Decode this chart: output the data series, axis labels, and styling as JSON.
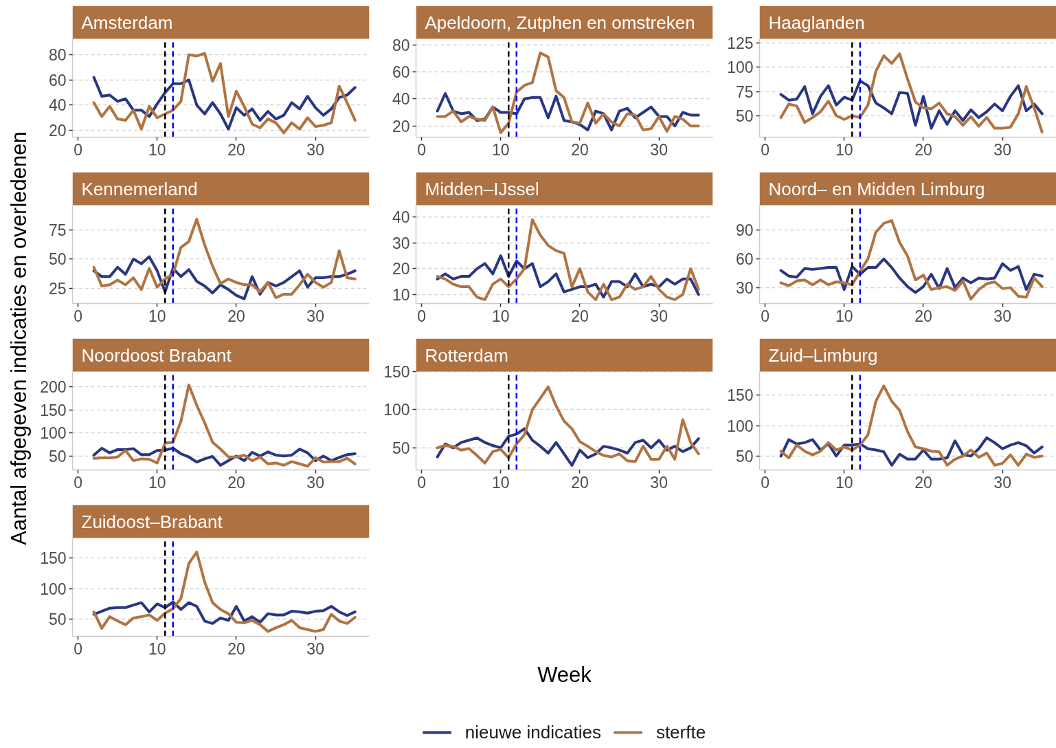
{
  "chart_data": [
    {
      "type": "line",
      "title": "Amsterdam",
      "ylabel": "Aantal afgegeven indicaties en overledenen",
      "legend": "bottom",
      "x": [
        2,
        3,
        4,
        5,
        6,
        7,
        8,
        9,
        10,
        11,
        12,
        13,
        14,
        15,
        16,
        17,
        18,
        19,
        20,
        21,
        22,
        23,
        24,
        25,
        26,
        27,
        28,
        29,
        30,
        31,
        32,
        33,
        34,
        35
      ],
      "series": [
        {
          "name": "nieuwe indicaties",
          "color": "#2a3780",
          "values": [
            62,
            47,
            48,
            43,
            45,
            36,
            36,
            31,
            41,
            50,
            57,
            57,
            60,
            40,
            33,
            42,
            33,
            21,
            38,
            32,
            37,
            28,
            35,
            29,
            32,
            42,
            37,
            47,
            38,
            32,
            37,
            46,
            48,
            54
          ]
        },
        {
          "name": "sterfte",
          "color": "#b07443",
          "values": [
            42,
            31,
            39,
            29,
            28,
            36,
            21,
            39,
            30,
            33,
            36,
            43,
            80,
            79,
            81,
            59,
            73,
            31,
            51,
            39,
            25,
            22,
            29,
            26,
            18,
            26,
            21,
            30,
            23,
            24,
            26,
            55,
            42,
            28
          ]
        }
      ],
      "xlim": [
        -0.7,
        36.8
      ],
      "xticks": [
        0,
        10,
        20,
        30
      ],
      "ylim": [
        14.6,
        92.6
      ],
      "yticks": [
        20,
        40,
        60,
        80
      ],
      "grid": "y",
      "ref_lines": [
        {
          "axis": "x",
          "value": 11,
          "color": "#000000",
          "line_style": "dashed"
        },
        {
          "axis": "x",
          "value": 12,
          "color": "#0000ff",
          "line_style": "dashed"
        }
      ]
    },
    {
      "type": "line",
      "title": "Apeldoorn, Zutphen en omstreken",
      "x": [
        2,
        3,
        4,
        5,
        6,
        7,
        8,
        9,
        10,
        11,
        12,
        13,
        14,
        15,
        16,
        17,
        18,
        19,
        20,
        21,
        22,
        23,
        24,
        25,
        26,
        27,
        28,
        29,
        30,
        31,
        32,
        33,
        34,
        35
      ],
      "series": [
        {
          "color": "#2a3780",
          "values": [
            31,
            44,
            31,
            29,
            30,
            24,
            25,
            34,
            30,
            30,
            29,
            40,
            41,
            41,
            26,
            42,
            24,
            23,
            21,
            17,
            31,
            29,
            17,
            31,
            33,
            26,
            30,
            34,
            27,
            27,
            20,
            30,
            28,
            28
          ]
        },
        {
          "color": "#b07443",
          "values": [
            27,
            27,
            31,
            23,
            27,
            25,
            24,
            34,
            15,
            22,
            45,
            50,
            52,
            74,
            71,
            46,
            41,
            23,
            22,
            37,
            22,
            29,
            23,
            20,
            29,
            28,
            17,
            18,
            27,
            16,
            27,
            25,
            20,
            20
          ]
        }
      ],
      "xlim": [
        -0.7,
        36.8
      ],
      "xticks": [
        0,
        10,
        20,
        30
      ],
      "ylim": [
        11.7,
        84.4
      ],
      "yticks": [
        20,
        40,
        60,
        80
      ],
      "grid": "y",
      "ref_lines": [
        {
          "axis": "x",
          "value": 11,
          "color": "#000000",
          "line_style": "dashed"
        },
        {
          "axis": "x",
          "value": 12,
          "color": "#0000ff",
          "line_style": "dashed"
        }
      ]
    },
    {
      "type": "line",
      "title": "Haaglanden",
      "x": [
        2,
        3,
        4,
        5,
        6,
        7,
        8,
        9,
        10,
        11,
        12,
        13,
        14,
        15,
        16,
        17,
        18,
        19,
        20,
        21,
        22,
        23,
        24,
        25,
        26,
        27,
        28,
        29,
        30,
        31,
        32,
        33,
        34,
        35
      ],
      "series": [
        {
          "color": "#2a3780",
          "values": [
            72,
            66,
            67,
            80,
            52,
            70,
            81,
            61,
            69,
            66,
            86,
            81,
            63,
            58,
            52,
            74,
            73,
            40,
            70,
            37,
            55,
            41,
            55,
            45,
            56,
            48,
            54,
            62,
            55,
            70,
            81,
            55,
            62,
            52
          ]
        },
        {
          "color": "#b07443",
          "values": [
            48,
            62,
            60,
            43,
            48,
            54,
            65,
            50,
            46,
            50,
            48,
            61,
            96,
            112,
            104,
            114,
            88,
            64,
            58,
            57,
            63,
            52,
            49,
            40,
            49,
            39,
            48,
            37,
            37,
            38,
            52,
            80,
            58,
            33
          ]
        }
      ],
      "xlim": [
        -0.7,
        36.8
      ],
      "xticks": [
        0,
        10,
        20,
        30
      ],
      "ylim": [
        27.7,
        129.5
      ],
      "yticks": [
        50,
        75,
        100,
        125
      ],
      "grid": "y",
      "ref_lines": [
        {
          "axis": "x",
          "value": 11,
          "color": "#000000",
          "line_style": "dashed"
        },
        {
          "axis": "x",
          "value": 12,
          "color": "#0000ff",
          "line_style": "dashed"
        }
      ]
    },
    {
      "type": "line",
      "title": "Kennemerland",
      "x": [
        2,
        3,
        4,
        5,
        6,
        7,
        8,
        9,
        10,
        11,
        12,
        13,
        14,
        15,
        16,
        17,
        18,
        19,
        20,
        21,
        22,
        23,
        24,
        25,
        26,
        27,
        28,
        29,
        30,
        31,
        32,
        33,
        34,
        35
      ],
      "series": [
        {
          "color": "#2a3780",
          "values": [
            40,
            35,
            35,
            43,
            37,
            50,
            46,
            52,
            40,
            22,
            42,
            35,
            41,
            31,
            27,
            21,
            28,
            24,
            19,
            16,
            35,
            20,
            30,
            27,
            30,
            35,
            40,
            26,
            34,
            34,
            35,
            35,
            37,
            40
          ]
        },
        {
          "color": "#b07443",
          "values": [
            43,
            27,
            28,
            32,
            28,
            34,
            24,
            42,
            26,
            33,
            37,
            60,
            65,
            84,
            62,
            44,
            29,
            33,
            30,
            28,
            28,
            22,
            30,
            17,
            20,
            20,
            28,
            37,
            30,
            26,
            30,
            57,
            34,
            33
          ]
        }
      ],
      "xlim": [
        -0.7,
        36.8
      ],
      "xticks": [
        0,
        10,
        20,
        30
      ],
      "ylim": [
        12,
        96
      ],
      "yticks": [
        25,
        50,
        75
      ],
      "grid": "y",
      "ref_lines": [
        {
          "axis": "x",
          "value": 11,
          "color": "#000000",
          "line_style": "dashed"
        },
        {
          "axis": "x",
          "value": 12,
          "color": "#0000ff",
          "line_style": "dashed"
        }
      ]
    },
    {
      "type": "line",
      "title": "Midden–IJssel",
      "x": [
        2,
        3,
        4,
        5,
        6,
        7,
        8,
        9,
        10,
        11,
        12,
        13,
        14,
        15,
        16,
        17,
        18,
        19,
        20,
        21,
        22,
        23,
        24,
        25,
        26,
        27,
        28,
        29,
        30,
        31,
        32,
        33,
        34,
        35
      ],
      "series": [
        {
          "color": "#2a3780",
          "values": [
            16,
            18,
            16,
            17,
            17,
            20,
            22,
            18,
            25,
            17,
            23,
            20,
            22,
            13,
            15,
            18,
            11,
            12,
            13,
            13,
            14,
            9,
            15,
            15,
            13,
            18,
            13,
            14,
            13,
            16,
            14,
            16,
            16,
            10
          ]
        },
        {
          "color": "#b07443",
          "values": [
            17,
            16,
            14,
            13,
            13,
            9,
            8,
            14,
            16,
            13,
            16,
            20,
            39,
            33,
            29,
            27,
            26,
            13,
            20,
            11,
            8,
            14,
            8,
            9,
            14,
            12,
            13,
            17,
            12,
            9,
            8,
            10,
            20,
            12
          ]
        }
      ],
      "xlim": [
        -0.7,
        36.8
      ],
      "xticks": [
        0,
        10,
        20,
        30
      ],
      "ylim": [
        6.5,
        44.6
      ],
      "yticks": [
        10,
        20,
        30,
        40
      ],
      "grid": "y",
      "ref_lines": [
        {
          "axis": "x",
          "value": 11,
          "color": "#000000",
          "line_style": "dashed"
        },
        {
          "axis": "x",
          "value": 12,
          "color": "#0000ff",
          "line_style": "dashed"
        }
      ]
    },
    {
      "type": "line",
      "title": "Noord– en Midden Limburg",
      "x": [
        2,
        3,
        4,
        5,
        6,
        7,
        8,
        9,
        10,
        11,
        12,
        13,
        14,
        15,
        16,
        17,
        18,
        19,
        20,
        21,
        22,
        23,
        24,
        25,
        26,
        27,
        28,
        29,
        30,
        31,
        32,
        33,
        34,
        35
      ],
      "series": [
        {
          "color": "#2a3780",
          "values": [
            48,
            42,
            41,
            50,
            49,
            50,
            51,
            51,
            28,
            52,
            44,
            51,
            51,
            60,
            51,
            40,
            31,
            25,
            31,
            44,
            29,
            50,
            30,
            40,
            35,
            40,
            39,
            40,
            55,
            48,
            52,
            28,
            44,
            42
          ]
        },
        {
          "color": "#b07443",
          "values": [
            35,
            32,
            37,
            38,
            33,
            38,
            33,
            36,
            35,
            33,
            47,
            60,
            88,
            97,
            100,
            77,
            63,
            38,
            43,
            28,
            30,
            31,
            27,
            37,
            18,
            28,
            34,
            36,
            29,
            30,
            21,
            20,
            40,
            31
          ]
        }
      ],
      "xlim": [
        -0.7,
        36.8
      ],
      "xticks": [
        0,
        10,
        20,
        30
      ],
      "ylim": [
        13.4,
        116
      ],
      "yticks": [
        30,
        60,
        90
      ],
      "grid": "y",
      "ref_lines": [
        {
          "axis": "x",
          "value": 11,
          "color": "#000000",
          "line_style": "dashed"
        },
        {
          "axis": "x",
          "value": 12,
          "color": "#0000ff",
          "line_style": "dashed"
        }
      ]
    },
    {
      "type": "line",
      "title": "Noordoost Brabant",
      "x": [
        2,
        3,
        4,
        5,
        6,
        7,
        8,
        9,
        10,
        11,
        12,
        13,
        14,
        15,
        16,
        17,
        18,
        19,
        20,
        21,
        22,
        23,
        24,
        25,
        26,
        27,
        28,
        29,
        30,
        31,
        32,
        33,
        34,
        35
      ],
      "series": [
        {
          "color": "#2a3780",
          "values": [
            52,
            67,
            57,
            64,
            64,
            66,
            53,
            53,
            62,
            63,
            67,
            55,
            48,
            37,
            44,
            49,
            30,
            40,
            50,
            40,
            58,
            50,
            59,
            52,
            50,
            52,
            65,
            57,
            40,
            50,
            40,
            47,
            53,
            55
          ]
        },
        {
          "color": "#b07443",
          "values": [
            45,
            46,
            46,
            48,
            62,
            40,
            44,
            43,
            35,
            78,
            80,
            125,
            204,
            160,
            122,
            80,
            65,
            48,
            48,
            52,
            40,
            48,
            33,
            35,
            30,
            38,
            33,
            28,
            46,
            37,
            38,
            38,
            45,
            33
          ]
        }
      ],
      "xlim": [
        -0.7,
        36.8
      ],
      "xticks": [
        0,
        10,
        20,
        30
      ],
      "ylim": [
        20,
        233
      ],
      "yticks": [
        50,
        100,
        150,
        200
      ],
      "grid": "y",
      "ref_lines": [
        {
          "axis": "x",
          "value": 11,
          "color": "#000000",
          "line_style": "dashed"
        },
        {
          "axis": "x",
          "value": 12,
          "color": "#0000ff",
          "line_style": "dashed"
        }
      ]
    },
    {
      "type": "line",
      "title": "Rotterdam",
      "xlabel": "Week",
      "x": [
        2,
        3,
        4,
        5,
        6,
        7,
        8,
        9,
        10,
        11,
        12,
        13,
        14,
        15,
        16,
        17,
        18,
        19,
        20,
        21,
        22,
        23,
        24,
        25,
        26,
        27,
        28,
        29,
        30,
        31,
        32,
        33,
        34,
        35
      ],
      "series": [
        {
          "color": "#2a3780",
          "values": [
            38,
            55,
            50,
            57,
            60,
            63,
            57,
            53,
            50,
            65,
            68,
            75,
            60,
            52,
            43,
            57,
            42,
            27,
            47,
            37,
            42,
            52,
            50,
            47,
            43,
            57,
            60,
            50,
            60,
            47,
            52,
            45,
            50,
            62
          ]
        },
        {
          "color": "#b07443",
          "values": [
            50,
            53,
            52,
            47,
            49,
            40,
            30,
            45,
            48,
            37,
            55,
            67,
            100,
            115,
            130,
            105,
            85,
            75,
            58,
            52,
            45,
            40,
            38,
            42,
            33,
            32,
            52,
            35,
            35,
            52,
            35,
            87,
            57,
            42
          ]
        }
      ],
      "xlim": [
        -0.7,
        36.8
      ],
      "xticks": [
        0,
        10,
        20,
        30
      ],
      "ylim": [
        21,
        150
      ],
      "yticks": [
        50,
        100,
        150
      ],
      "grid": "y",
      "ref_lines": [
        {
          "axis": "x",
          "value": 11,
          "color": "#000000",
          "line_style": "dashed"
        },
        {
          "axis": "x",
          "value": 12,
          "color": "#0000ff",
          "line_style": "dashed"
        }
      ]
    },
    {
      "type": "line",
      "title": "Zuid–Limburg",
      "x": [
        2,
        3,
        4,
        5,
        6,
        7,
        8,
        9,
        10,
        11,
        12,
        13,
        14,
        15,
        16,
        17,
        18,
        19,
        20,
        21,
        22,
        23,
        24,
        25,
        26,
        27,
        28,
        29,
        30,
        31,
        32,
        33,
        34,
        35
      ],
      "series": [
        {
          "color": "#2a3780",
          "values": [
            50,
            77,
            70,
            72,
            77,
            60,
            70,
            50,
            68,
            68,
            70,
            62,
            60,
            57,
            35,
            53,
            45,
            45,
            60,
            45,
            45,
            47,
            75,
            52,
            50,
            62,
            80,
            72,
            62,
            68,
            72,
            67,
            55,
            65
          ]
        },
        {
          "color": "#b07443",
          "values": [
            58,
            47,
            68,
            58,
            52,
            58,
            72,
            60,
            65,
            60,
            68,
            85,
            140,
            165,
            140,
            125,
            90,
            65,
            62,
            58,
            57,
            35,
            45,
            50,
            60,
            48,
            55,
            35,
            38,
            52,
            35,
            53,
            48,
            50
          ]
        }
      ],
      "xlim": [
        -0.7,
        36.8
      ],
      "xticks": [
        0,
        10,
        20,
        30
      ],
      "ylim": [
        27.3,
        188.6
      ],
      "yticks": [
        50,
        100,
        150
      ],
      "grid": "y",
      "ref_lines": [
        {
          "axis": "x",
          "value": 11,
          "color": "#000000",
          "line_style": "dashed"
        },
        {
          "axis": "x",
          "value": 12,
          "color": "#0000ff",
          "line_style": "dashed"
        }
      ]
    },
    {
      "type": "line",
      "title": "Zuidoost–Brabant",
      "x": [
        2,
        3,
        4,
        5,
        6,
        7,
        8,
        9,
        10,
        11,
        12,
        13,
        14,
        15,
        16,
        17,
        18,
        19,
        20,
        21,
        22,
        23,
        24,
        25,
        26,
        27,
        28,
        29,
        30,
        31,
        32,
        33,
        34,
        35
      ],
      "series": [
        {
          "color": "#2a3780",
          "values": [
            58,
            63,
            68,
            69,
            69,
            73,
            77,
            62,
            75,
            69,
            78,
            66,
            77,
            71,
            47,
            43,
            52,
            48,
            71,
            47,
            54,
            45,
            59,
            57,
            57,
            63,
            62,
            60,
            63,
            64,
            71,
            62,
            56,
            62
          ]
        },
        {
          "color": "#b07443",
          "values": [
            62,
            35,
            54,
            47,
            41,
            52,
            54,
            57,
            48,
            60,
            67,
            84,
            141,
            160,
            111,
            77,
            66,
            59,
            45,
            44,
            48,
            41,
            30,
            36,
            41,
            48,
            36,
            33,
            30,
            33,
            58,
            47,
            43,
            53
          ]
        }
      ],
      "xlim": [
        -0.7,
        36.8
      ],
      "xticks": [
        0,
        10,
        20,
        30
      ],
      "ylim": [
        22,
        183
      ],
      "yticks": [
        50,
        100,
        150
      ],
      "grid": "y",
      "ref_lines": [
        {
          "axis": "x",
          "value": 11,
          "color": "#000000",
          "line_style": "dashed"
        },
        {
          "axis": "x",
          "value": 12,
          "color": "#0000ff",
          "line_style": "dashed"
        }
      ]
    }
  ]
}
